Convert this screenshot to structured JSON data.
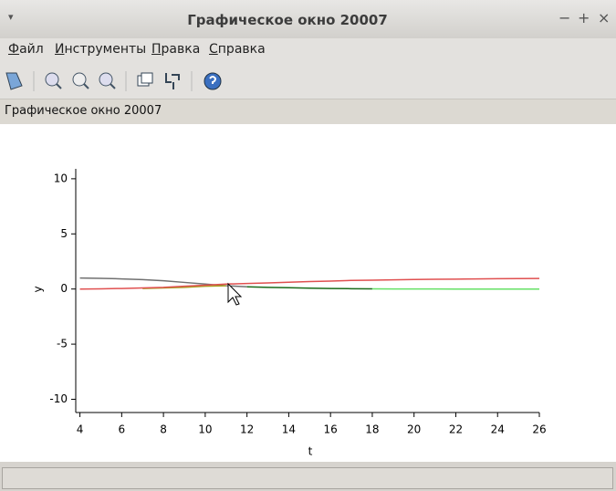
{
  "window": {
    "title": "Графическое окно 20007",
    "menu_glyph": "▾",
    "controls": [
      "−",
      "+",
      "×"
    ]
  },
  "menu": [
    "Файл",
    "Инструменты",
    "Правка",
    "Справка"
  ],
  "figure_label": "Графическое окно 20007",
  "chart_data": {
    "type": "line",
    "xlabel": "t",
    "ylabel": "y",
    "x": [
      4,
      5,
      6,
      7,
      8,
      9,
      10,
      11,
      12,
      13,
      14,
      15,
      16,
      17,
      18,
      19,
      20,
      21,
      22,
      23,
      24,
      25,
      26
    ],
    "series": [
      {
        "color": "#707070",
        "values": [
          1.0,
          0.97,
          0.92,
          0.85,
          0.75,
          0.6,
          0.45,
          0.3,
          0.2,
          null,
          null,
          null,
          null,
          null,
          null,
          null,
          null,
          null,
          null,
          null,
          null,
          null,
          null
        ]
      },
      {
        "color": "#1a6b1a",
        "values": [
          null,
          null,
          null,
          null,
          null,
          null,
          null,
          null,
          0.2,
          0.15,
          0.12,
          0.08,
          0.05,
          0.03,
          0.02,
          null,
          null,
          null,
          null,
          null,
          null,
          null,
          null
        ]
      },
      {
        "color": "#66e066",
        "values": [
          null,
          null,
          null,
          null,
          null,
          null,
          null,
          null,
          null,
          null,
          null,
          null,
          null,
          null,
          0.02,
          0.01,
          0.01,
          0.01,
          0.0,
          0.0,
          0.0,
          0.0,
          0.0
        ]
      },
      {
        "color": "#a8a020",
        "values": [
          null,
          null,
          null,
          0.05,
          0.1,
          0.15,
          0.25,
          0.3,
          null,
          null,
          null,
          null,
          null,
          null,
          null,
          null,
          null,
          null,
          null,
          null,
          null,
          null,
          null
        ]
      },
      {
        "color": "#e05050",
        "values": [
          0.0,
          0.02,
          0.05,
          0.1,
          0.15,
          0.25,
          0.35,
          0.45,
          0.5,
          0.55,
          0.62,
          0.68,
          0.72,
          0.78,
          0.8,
          0.83,
          0.86,
          0.88,
          0.9,
          0.92,
          0.94,
          0.95,
          0.96
        ]
      }
    ],
    "xlim": [
      3.8,
      26
    ],
    "ylim": [
      -11.2,
      10.9
    ],
    "xticks": [
      4,
      6,
      8,
      10,
      12,
      14,
      16,
      18,
      20,
      22,
      24,
      26
    ],
    "yticks": [
      -10,
      -5,
      0,
      5,
      10
    ]
  }
}
